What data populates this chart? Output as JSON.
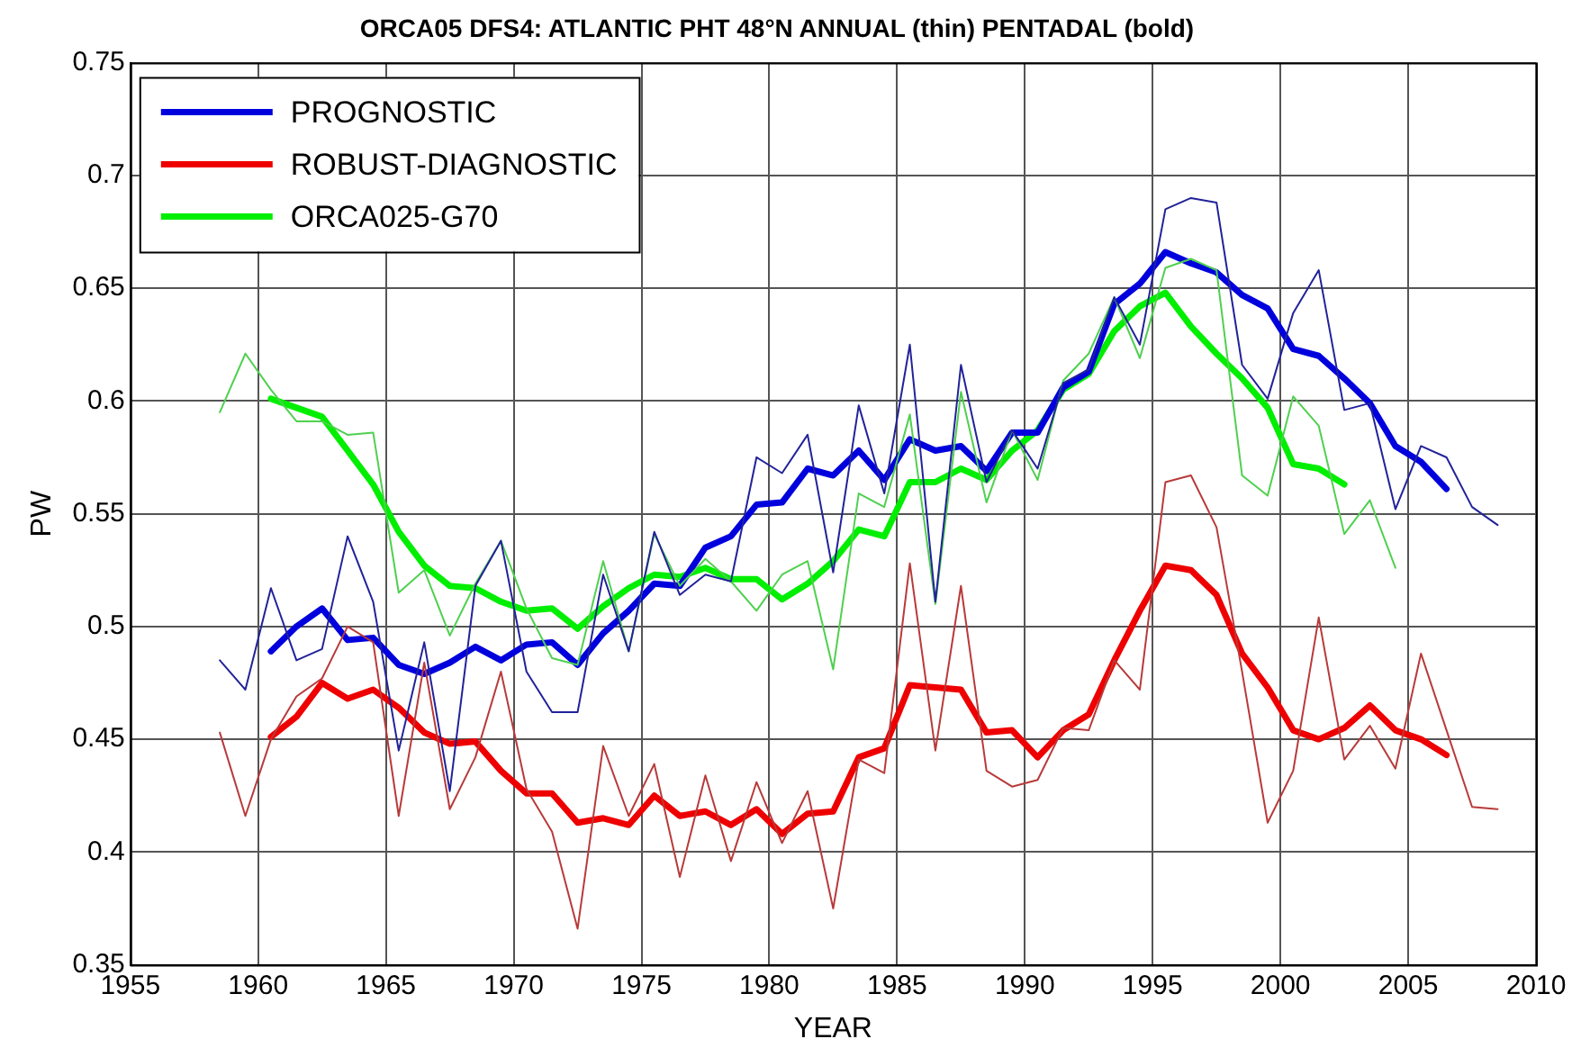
{
  "chart_data": {
    "type": "line",
    "title": "ORCA05 DFS4: ATLANTIC PHT 48°N ANNUAL (thin) PENTADAL (bold)",
    "xlabel": "YEAR",
    "ylabel": "PW",
    "x": [
      1958.5,
      1959.5,
      1960.5,
      1961.5,
      1962.5,
      1963.5,
      1964.5,
      1965.5,
      1966.5,
      1967.5,
      1968.5,
      1969.5,
      1970.5,
      1971.5,
      1972.5,
      1973.5,
      1974.5,
      1975.5,
      1976.5,
      1977.5,
      1978.5,
      1979.5,
      1980.5,
      1981.5,
      1982.5,
      1983.5,
      1984.5,
      1985.5,
      1986.5,
      1987.5,
      1988.5,
      1989.5,
      1990.5,
      1991.5,
      1992.5,
      1993.5,
      1994.5,
      1995.5,
      1996.5,
      1997.5,
      1998.5,
      1999.5,
      2000.5,
      2001.5,
      2002.5,
      2003.5,
      2004.5,
      2005.5,
      2006.5,
      2007.5,
      2008.5
    ],
    "series": [
      {
        "color": "#22229a",
        "values": [
          0.485,
          0.472,
          0.517,
          0.485,
          0.49,
          0.54,
          0.511,
          0.445,
          0.493,
          0.427,
          0.518,
          0.538,
          0.48,
          0.462,
          0.462,
          0.523,
          0.489,
          0.542,
          0.514,
          0.523,
          0.52,
          0.575,
          0.568,
          0.585,
          0.524,
          0.598,
          0.559,
          0.625,
          0.511,
          0.616,
          0.564,
          0.587,
          0.57,
          0.608,
          0.614,
          0.646,
          0.625,
          0.685,
          0.69,
          0.688,
          0.616,
          0.601,
          0.639,
          0.658,
          0.596,
          0.599,
          0.552,
          0.58,
          0.575,
          0.553,
          0.545
        ]
      },
      {
        "color": "#b83a3a",
        "values": [
          0.453,
          0.416,
          0.45,
          0.469,
          0.477,
          0.5,
          0.493,
          0.416,
          0.484,
          0.419,
          0.442,
          0.48,
          0.428,
          0.409,
          0.366,
          0.447,
          0.416,
          0.439,
          0.389,
          0.434,
          0.396,
          0.431,
          0.404,
          0.427,
          0.375,
          0.441,
          0.435,
          0.528,
          0.445,
          0.518,
          0.436,
          0.429,
          0.432,
          0.455,
          0.454,
          0.485,
          0.472,
          0.564,
          0.567,
          0.544,
          0.48,
          0.413,
          0.436,
          0.504,
          0.441,
          0.456,
          0.437,
          0.488,
          0.454,
          0.42,
          0.419
        ]
      },
      {
        "color": "#4fd04f",
        "values": [
          0.595,
          0.621,
          0.605,
          0.591,
          0.591,
          0.585,
          0.586,
          0.515,
          0.525,
          0.496,
          0.519,
          0.538,
          0.508,
          0.486,
          0.483,
          0.529,
          0.489,
          0.541,
          0.518,
          0.53,
          0.52,
          0.507,
          0.523,
          0.529,
          0.481,
          0.559,
          0.553,
          0.594,
          0.51,
          0.604,
          0.555,
          0.587,
          0.565,
          0.609,
          0.621,
          0.646,
          0.619,
          0.659,
          0.663,
          0.658,
          0.567,
          0.558,
          0.602,
          0.589,
          0.541,
          0.556,
          0.526,
          null,
          null,
          null,
          null
        ]
      },
      {
        "name": "PROGNOSTIC",
        "color": "#0000dd",
        "values": [
          null,
          null,
          0.489,
          0.5,
          0.508,
          0.494,
          0.495,
          0.483,
          0.479,
          0.484,
          0.491,
          0.485,
          0.492,
          0.493,
          0.483,
          0.497,
          0.507,
          0.519,
          0.518,
          0.535,
          0.54,
          0.554,
          0.555,
          0.57,
          0.567,
          0.578,
          0.565,
          0.583,
          0.578,
          0.58,
          0.569,
          0.586,
          0.586,
          0.606,
          0.613,
          0.643,
          0.652,
          0.666,
          0.661,
          0.657,
          0.647,
          0.641,
          0.623,
          0.62,
          0.61,
          0.599,
          0.58,
          0.573,
          0.561,
          null,
          null
        ]
      },
      {
        "name": "ROBUST-DIAGNOSTIC",
        "color": "#ee0000",
        "values": [
          null,
          null,
          0.451,
          0.46,
          0.475,
          0.468,
          0.472,
          0.464,
          0.453,
          0.448,
          0.449,
          0.436,
          0.426,
          0.426,
          0.413,
          0.415,
          0.412,
          0.425,
          0.416,
          0.418,
          0.412,
          0.419,
          0.408,
          0.417,
          0.418,
          0.442,
          0.446,
          0.474,
          0.473,
          0.472,
          0.453,
          0.454,
          0.442,
          0.454,
          0.461,
          0.485,
          0.507,
          0.527,
          0.525,
          0.514,
          0.488,
          0.473,
          0.454,
          0.45,
          0.455,
          0.465,
          0.454,
          0.45,
          0.443,
          null,
          null
        ]
      },
      {
        "name": "ORCA025-G70",
        "color": "#00ee00",
        "values": [
          null,
          null,
          0.601,
          0.597,
          0.593,
          0.578,
          0.563,
          0.542,
          0.527,
          0.518,
          0.517,
          0.511,
          0.507,
          0.508,
          0.499,
          0.509,
          0.517,
          0.523,
          0.522,
          0.526,
          0.521,
          0.521,
          0.512,
          0.519,
          0.529,
          0.543,
          0.54,
          0.564,
          0.564,
          0.57,
          0.565,
          0.578,
          0.587,
          0.605,
          0.612,
          0.631,
          0.642,
          0.648,
          0.633,
          0.621,
          0.61,
          0.597,
          0.572,
          0.57,
          0.563,
          null,
          null,
          null,
          null,
          null,
          null
        ]
      }
    ],
    "xlim": [
      1955,
      2010
    ],
    "xticks": [
      1955,
      1960,
      1965,
      1970,
      1975,
      1980,
      1985,
      1990,
      1995,
      2000,
      2005,
      2010
    ],
    "ylim": [
      0.35,
      0.75
    ],
    "yticks": [
      0.35,
      0.4,
      0.45,
      0.5,
      0.55,
      0.6,
      0.65,
      0.7,
      0.75
    ],
    "grid": true,
    "legend": "top left",
    "marker": "none",
    "line_style": "solid"
  }
}
